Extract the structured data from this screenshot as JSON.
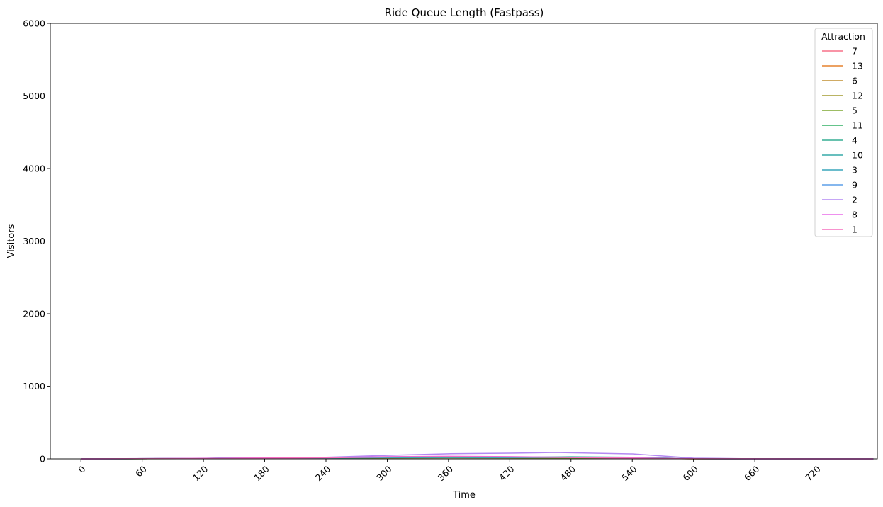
{
  "chart_data": {
    "type": "line",
    "title": "Ride Queue Length (Fastpass)",
    "xlabel": "Time",
    "ylabel": "Visitors",
    "xlim": [
      -30,
      780
    ],
    "ylim": [
      0,
      6000
    ],
    "xticks": [
      0,
      60,
      120,
      180,
      240,
      300,
      360,
      420,
      480,
      540,
      600,
      660,
      720
    ],
    "yticks": [
      0,
      1000,
      2000,
      3000,
      4000,
      5000,
      6000
    ],
    "grid": false,
    "legend": {
      "title": "Attraction",
      "placement": "top-right"
    },
    "series": [
      {
        "name": "7",
        "color": "#f77189",
        "x": [
          0,
          120,
          240,
          300,
          360,
          420,
          480,
          540,
          600,
          660,
          720,
          776
        ],
        "y": [
          0,
          4,
          10,
          14,
          16,
          15,
          12,
          8,
          2,
          0,
          0,
          0
        ]
      },
      {
        "name": "13",
        "color": "#e5822f",
        "x": [
          0,
          120,
          180,
          240,
          300,
          360,
          420,
          480,
          540,
          600,
          720,
          776
        ],
        "y": [
          0,
          6,
          18,
          15,
          20,
          22,
          18,
          14,
          6,
          1,
          0,
          0
        ]
      },
      {
        "name": "6",
        "color": "#c18f31",
        "x": [
          0,
          120,
          240,
          300,
          360,
          420,
          480,
          540,
          600,
          720,
          776
        ],
        "y": [
          0,
          5,
          12,
          18,
          20,
          17,
          13,
          8,
          1,
          0,
          0
        ]
      },
      {
        "name": "12",
        "color": "#a39b31",
        "x": [
          0,
          120,
          240,
          300,
          360,
          420,
          480,
          540,
          600,
          720,
          776
        ],
        "y": [
          0,
          4,
          11,
          16,
          19,
          16,
          12,
          7,
          1,
          0,
          0
        ]
      },
      {
        "name": "5",
        "color": "#7da731",
        "x": [
          0,
          120,
          240,
          300,
          360,
          420,
          480,
          540,
          600,
          720,
          776
        ],
        "y": [
          0,
          3,
          9,
          13,
          15,
          13,
          10,
          6,
          1,
          0,
          0
        ]
      },
      {
        "name": "11",
        "color": "#32b165",
        "x": [
          0,
          120,
          240,
          300,
          360,
          420,
          480,
          540,
          600,
          720,
          776
        ],
        "y": [
          0,
          5,
          14,
          20,
          22,
          20,
          24,
          18,
          2,
          0,
          0
        ]
      },
      {
        "name": "4",
        "color": "#35ad93",
        "x": [
          0,
          120,
          240,
          300,
          360,
          420,
          480,
          540,
          600,
          720,
          776
        ],
        "y": [
          0,
          4,
          12,
          17,
          19,
          17,
          20,
          15,
          2,
          0,
          0
        ]
      },
      {
        "name": "10",
        "color": "#37aaa9",
        "x": [
          0,
          120,
          240,
          300,
          360,
          420,
          480,
          540,
          600,
          720,
          776
        ],
        "y": [
          0,
          6,
          16,
          22,
          25,
          22,
          28,
          22,
          3,
          0,
          0
        ]
      },
      {
        "name": "3",
        "color": "#39a6bc",
        "x": [
          0,
          120,
          240,
          300,
          360,
          420,
          480,
          540,
          600,
          720,
          776
        ],
        "y": [
          0,
          5,
          13,
          18,
          20,
          18,
          22,
          16,
          2,
          0,
          0
        ]
      },
      {
        "name": "9",
        "color": "#5d9fe9",
        "x": [
          0,
          120,
          150,
          240,
          300,
          360,
          420,
          480,
          540,
          600,
          720,
          776
        ],
        "y": [
          0,
          6,
          18,
          20,
          26,
          28,
          25,
          22,
          14,
          2,
          0,
          0
        ]
      },
      {
        "name": "2",
        "color": "#b489f3",
        "x": [
          0,
          60,
          120,
          180,
          240,
          300,
          360,
          420,
          465,
          540,
          600,
          660,
          720,
          776
        ],
        "y": [
          0,
          4,
          8,
          14,
          22,
          48,
          70,
          78,
          88,
          68,
          10,
          0,
          0,
          0
        ]
      },
      {
        "name": "8",
        "color": "#e96be9",
        "x": [
          0,
          120,
          240,
          300,
          360,
          420,
          480,
          540,
          600,
          720,
          776
        ],
        "y": [
          0,
          6,
          18,
          30,
          35,
          30,
          22,
          12,
          2,
          0,
          0
        ]
      },
      {
        "name": "1",
        "color": "#f56fbe",
        "x": [
          0,
          120,
          240,
          300,
          360,
          420,
          480,
          540,
          600,
          720,
          776
        ],
        "y": [
          0,
          5,
          15,
          26,
          30,
          26,
          18,
          10,
          1,
          0,
          0
        ]
      }
    ]
  }
}
